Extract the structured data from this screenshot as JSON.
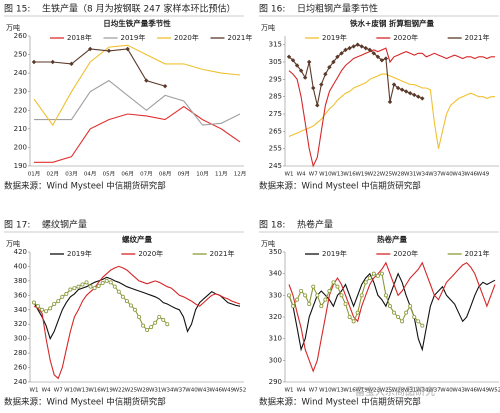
{
  "figures": [
    {
      "label": "图 15:",
      "caption": "生铁产量（8 月为按钢联 247 家样本环比预估）",
      "source": "数据来源：Wind Mysteel 中信期货研究部"
    },
    {
      "label": "图 16:",
      "caption": "日均粗钢产量季节性",
      "source": "数据来源：Wind Mysteel 中信期货研究部"
    },
    {
      "label": "图 17:",
      "caption": "螺纹钢产量",
      "source": "数据来源：Wind Mysteel 中信期货研究部"
    },
    {
      "label": "图 18:",
      "caption": "热卷产量",
      "source": "数据来源：Wind Mysteel 中信期货研究部"
    }
  ],
  "watermark": "富宝大宗商品研究",
  "chart_data": [
    {
      "type": "line",
      "title": "日均生铁产量季节性",
      "y_label": "万吨",
      "categories": [
        "01月",
        "02月",
        "03月",
        "04月",
        "05月",
        "06月",
        "07月",
        "08月",
        "09月",
        "10月",
        "11月",
        "12月"
      ],
      "ylim": [
        190,
        260
      ],
      "yticks": [
        190,
        200,
        210,
        220,
        230,
        240,
        250,
        260
      ],
      "grid": false,
      "series": [
        {
          "name": "2018年",
          "color": "#e03030",
          "values": [
            192,
            192,
            195,
            210,
            215,
            218,
            217,
            215,
            222,
            215,
            210,
            203
          ]
        },
        {
          "name": "2019年",
          "color": "#a0a0a0",
          "values": [
            215,
            215,
            215,
            230,
            236,
            228,
            220,
            228,
            225,
            212,
            213,
            218
          ]
        },
        {
          "name": "2020年",
          "color": "#f0c030",
          "values": [
            226,
            212,
            230,
            246,
            254,
            255,
            250,
            245,
            245,
            242,
            240,
            239
          ]
        },
        {
          "name": "2021年",
          "color": "#5a3a2a",
          "marker": "diamond",
          "values": [
            246,
            246,
            245,
            253,
            252,
            253,
            236,
            233,
            null,
            null,
            null,
            null
          ]
        }
      ]
    },
    {
      "type": "line",
      "title": "铁水+废钢  折算粗钢产量",
      "y_label": "万吨",
      "categories": [
        "W1",
        null,
        null,
        "W4",
        null,
        null,
        "W7",
        null,
        null,
        "W10",
        null,
        null,
        "W13",
        null,
        null,
        "W16",
        null,
        null,
        "W19",
        null,
        null,
        "W22",
        null,
        null,
        "W25",
        null,
        null,
        "W28",
        null,
        null,
        "W31",
        null,
        null,
        "W34",
        null,
        null,
        "W37",
        null,
        null,
        "W40",
        null,
        null,
        "W43",
        null,
        null,
        "W46",
        null,
        null,
        "W49",
        null,
        null,
        null
      ],
      "ylim": [
        245,
        320
      ],
      "yticks": [
        245,
        255,
        265,
        275,
        285,
        295,
        305,
        315
      ],
      "grid": false,
      "series": [
        {
          "name": "2019年",
          "color": "#f0c030",
          "values": [
            262,
            263,
            264,
            265,
            266,
            267,
            268,
            270,
            272,
            275,
            278,
            280,
            283,
            285,
            287,
            288,
            290,
            291,
            292,
            293,
            295,
            296,
            297,
            298,
            298,
            297,
            296,
            295,
            294,
            293,
            292,
            292,
            291,
            290,
            290,
            289,
            270,
            255,
            265,
            275,
            280,
            282,
            284,
            285,
            286,
            287,
            286,
            285,
            285,
            284,
            285,
            285
          ]
        },
        {
          "name": "2020年",
          "color": "#d62728",
          "values": [
            300,
            298,
            295,
            285,
            270,
            255,
            245,
            250,
            265,
            280,
            288,
            292,
            296,
            300,
            303,
            305,
            307,
            308,
            309,
            310,
            311,
            312,
            311,
            312,
            313,
            305,
            308,
            309,
            310,
            311,
            310,
            309,
            310,
            310,
            308,
            309,
            310,
            309,
            308,
            307,
            308,
            309,
            308,
            307,
            308,
            308,
            307,
            308,
            308,
            307,
            308,
            308
          ]
        },
        {
          "name": "2021年",
          "color": "#5a3a2a",
          "marker": "diamond",
          "values": [
            308,
            306,
            303,
            300,
            296,
            305,
            290,
            280,
            292,
            298,
            302,
            305,
            308,
            310,
            312,
            313,
            314,
            315,
            314,
            313,
            312,
            310,
            308,
            306,
            307,
            282,
            292,
            290,
            289,
            288,
            287,
            286,
            285,
            284,
            null,
            null,
            null,
            null,
            null,
            null,
            null,
            null,
            null,
            null,
            null,
            null,
            null,
            null,
            null,
            null,
            null,
            null
          ]
        }
      ]
    },
    {
      "type": "line",
      "title": "螺纹产量",
      "y_label": "万吨",
      "categories": [
        "W1",
        null,
        null,
        "W4",
        null,
        null,
        "W7",
        null,
        null,
        "W10",
        null,
        null,
        "W13",
        null,
        null,
        "W16",
        null,
        null,
        "W19",
        null,
        null,
        "W22",
        null,
        null,
        "W25",
        null,
        null,
        "W28",
        null,
        null,
        "W31",
        null,
        null,
        "W34",
        null,
        null,
        "W37",
        null,
        null,
        "W40",
        null,
        null,
        "W43",
        null,
        null,
        "W46",
        null,
        null,
        "W49",
        null,
        null,
        "W52"
      ],
      "ylim": [
        240,
        420
      ],
      "yticks": [
        240,
        260,
        280,
        300,
        320,
        340,
        360,
        380,
        400,
        420
      ],
      "grid": false,
      "series": [
        {
          "name": "2019年",
          "color": "#111111",
          "values": [
            350,
            340,
            330,
            318,
            300,
            310,
            325,
            340,
            350,
            358,
            362,
            368,
            370,
            372,
            375,
            378,
            380,
            382,
            385,
            383,
            380,
            378,
            375,
            372,
            370,
            368,
            366,
            364,
            362,
            360,
            358,
            355,
            350,
            348,
            345,
            342,
            340,
            330,
            310,
            320,
            340,
            350,
            355,
            360,
            365,
            362,
            360,
            355,
            350,
            348,
            346,
            345
          ]
        },
        {
          "name": "2020年",
          "color": "#d62728",
          "values": [
            345,
            342,
            335,
            300,
            270,
            250,
            245,
            260,
            285,
            310,
            330,
            340,
            352,
            360,
            365,
            370,
            378,
            385,
            390,
            395,
            398,
            400,
            398,
            395,
            390,
            385,
            380,
            378,
            376,
            378,
            380,
            378,
            375,
            372,
            370,
            365,
            360,
            358,
            355,
            352,
            348,
            345,
            350,
            355,
            360,
            362,
            360,
            357,
            355,
            352,
            350,
            348
          ]
        },
        {
          "name": "2021年",
          "color": "#8a9a3a",
          "marker": "circle",
          "values": [
            350,
            345,
            340,
            338,
            342,
            348,
            352,
            358,
            362,
            368,
            370,
            372,
            375,
            378,
            372,
            370,
            373,
            377,
            380,
            378,
            372,
            365,
            358,
            352,
            346,
            340,
            330,
            318,
            312,
            316,
            322,
            330,
            326,
            320,
            null,
            null,
            null,
            null,
            null,
            null,
            null,
            null,
            null,
            null,
            null,
            null,
            null,
            null,
            null,
            null,
            null,
            null
          ]
        }
      ]
    },
    {
      "type": "line",
      "title": "热卷产量",
      "y_label": "万吨",
      "categories": [
        "W1",
        null,
        null,
        "W4",
        null,
        null,
        "W7",
        null,
        null,
        "W10",
        null,
        null,
        "W13",
        null,
        null,
        "W16",
        null,
        null,
        "W19",
        null,
        null,
        "W22",
        null,
        null,
        "W25",
        null,
        null,
        "W28",
        null,
        null,
        "W31",
        null,
        null,
        "W34",
        null,
        null,
        "W37",
        null,
        null,
        "W40",
        null,
        null,
        "W43",
        null,
        null,
        "W46",
        null,
        null,
        "W49",
        null,
        null,
        "W52"
      ],
      "ylim": [
        290,
        350
      ],
      "yticks": [
        290,
        300,
        310,
        320,
        330,
        340,
        350
      ],
      "grid": false,
      "series": [
        {
          "name": "2019年",
          "color": "#111111",
          "values": [
            330,
            325,
            315,
            305,
            310,
            320,
            325,
            330,
            332,
            330,
            328,
            325,
            330,
            332,
            335,
            330,
            325,
            330,
            335,
            338,
            340,
            336,
            330,
            328,
            325,
            330,
            335,
            340,
            336,
            330,
            325,
            320,
            310,
            305,
            315,
            325,
            330,
            332,
            334,
            330,
            328,
            326,
            322,
            318,
            320,
            325,
            330,
            334,
            336,
            335,
            336,
            337
          ]
        },
        {
          "name": "2020年",
          "color": "#d62728",
          "values": [
            335,
            330,
            322,
            315,
            305,
            300,
            295,
            300,
            310,
            320,
            330,
            335,
            338,
            335,
            330,
            325,
            320,
            318,
            325,
            330,
            335,
            338,
            340,
            342,
            345,
            340,
            335,
            330,
            332,
            335,
            338,
            340,
            342,
            345,
            340,
            335,
            330,
            328,
            332,
            336,
            338,
            340,
            342,
            344,
            345,
            343,
            340,
            335,
            330,
            325,
            330,
            335
          ]
        },
        {
          "name": "2021年",
          "color": "#8a9a3a",
          "marker": "circle",
          "values": [
            330,
            325,
            328,
            332,
            330,
            326,
            334,
            330,
            325,
            328,
            332,
            336,
            334,
            330,
            326,
            320,
            318,
            322,
            330,
            336,
            338,
            340,
            339,
            340,
            330,
            325,
            322,
            320,
            318,
            322,
            325,
            320,
            318,
            316,
            null,
            null,
            null,
            null,
            null,
            null,
            null,
            null,
            null,
            null,
            null,
            null,
            null,
            null,
            null,
            null,
            null,
            null
          ]
        }
      ]
    }
  ]
}
